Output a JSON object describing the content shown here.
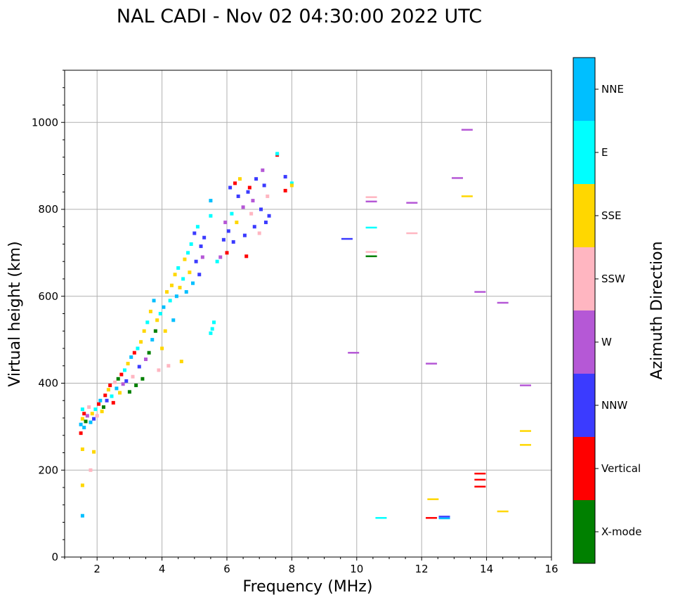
{
  "chart_data": {
    "type": "scatter",
    "title": "NAL CADI - Nov 02 04:30:00 2022 UTC",
    "xlabel": "Frequency (MHz)",
    "ylabel": "Virtual height (km)",
    "xlim": [
      1,
      16
    ],
    "ylim": [
      0,
      1120
    ],
    "xticks": [
      2,
      4,
      6,
      8,
      10,
      12,
      14,
      16
    ],
    "yticks": [
      0,
      200,
      400,
      600,
      800,
      1000
    ],
    "grid": true,
    "colorbar": {
      "title": "Azimuth Direction",
      "categories": [
        {
          "name": "X-mode",
          "color": "#008000"
        },
        {
          "name": "Vertical",
          "color": "#ff0000"
        },
        {
          "name": "NNW",
          "color": "#3b3bff"
        },
        {
          "name": "W",
          "color": "#b558d6"
        },
        {
          "name": "SSW",
          "color": "#ffb6c1"
        },
        {
          "name": "SSE",
          "color": "#ffd700"
        },
        {
          "name": "E",
          "color": "#00ffff"
        },
        {
          "name": "NNE",
          "color": "#00bfff"
        }
      ]
    },
    "points": [
      {
        "f": 1.5,
        "h": 305,
        "c": "NNE"
      },
      {
        "f": 1.55,
        "h": 318,
        "c": "SSE"
      },
      {
        "f": 1.6,
        "h": 330,
        "c": "Vertical"
      },
      {
        "f": 1.55,
        "h": 340,
        "c": "E"
      },
      {
        "f": 1.65,
        "h": 312,
        "c": "X-mode"
      },
      {
        "f": 1.6,
        "h": 298,
        "c": "NNE"
      },
      {
        "f": 1.5,
        "h": 285,
        "c": "Vertical"
      },
      {
        "f": 1.7,
        "h": 325,
        "c": "W"
      },
      {
        "f": 1.75,
        "h": 345,
        "c": "SSW"
      },
      {
        "f": 1.8,
        "h": 310,
        "c": "NNE"
      },
      {
        "f": 1.85,
        "h": 330,
        "c": "SSE"
      },
      {
        "f": 1.9,
        "h": 318,
        "c": "NNW"
      },
      {
        "f": 1.95,
        "h": 340,
        "c": "E"
      },
      {
        "f": 2.0,
        "h": 325,
        "c": "SSW"
      },
      {
        "f": 2.05,
        "h": 352,
        "c": "Vertical"
      },
      {
        "f": 2.1,
        "h": 360,
        "c": "NNE"
      },
      {
        "f": 2.15,
        "h": 335,
        "c": "SSE"
      },
      {
        "f": 2.2,
        "h": 345,
        "c": "X-mode"
      },
      {
        "f": 2.25,
        "h": 372,
        "c": "Vertical"
      },
      {
        "f": 2.3,
        "h": 360,
        "c": "NNW"
      },
      {
        "f": 2.35,
        "h": 385,
        "c": "SSE"
      },
      {
        "f": 2.4,
        "h": 395,
        "c": "Vertical"
      },
      {
        "f": 2.45,
        "h": 370,
        "c": "E"
      },
      {
        "f": 2.5,
        "h": 355,
        "c": "Vertical"
      },
      {
        "f": 2.55,
        "h": 402,
        "c": "SSW"
      },
      {
        "f": 2.6,
        "h": 388,
        "c": "NNE"
      },
      {
        "f": 2.65,
        "h": 410,
        "c": "X-mode"
      },
      {
        "f": 2.7,
        "h": 378,
        "c": "SSE"
      },
      {
        "f": 2.75,
        "h": 420,
        "c": "Vertical"
      },
      {
        "f": 2.8,
        "h": 398,
        "c": "W"
      },
      {
        "f": 2.85,
        "h": 430,
        "c": "E"
      },
      {
        "f": 2.9,
        "h": 405,
        "c": "NNW"
      },
      {
        "f": 2.95,
        "h": 445,
        "c": "SSE"
      },
      {
        "f": 3.0,
        "h": 380,
        "c": "X-mode"
      },
      {
        "f": 3.05,
        "h": 460,
        "c": "NNE"
      },
      {
        "f": 3.1,
        "h": 415,
        "c": "SSW"
      },
      {
        "f": 3.15,
        "h": 470,
        "c": "Vertical"
      },
      {
        "f": 3.2,
        "h": 395,
        "c": "X-mode"
      },
      {
        "f": 3.25,
        "h": 480,
        "c": "E"
      },
      {
        "f": 3.3,
        "h": 438,
        "c": "NNW"
      },
      {
        "f": 3.35,
        "h": 495,
        "c": "SSE"
      },
      {
        "f": 3.4,
        "h": 410,
        "c": "X-mode"
      },
      {
        "f": 3.45,
        "h": 520,
        "c": "SSE"
      },
      {
        "f": 3.5,
        "h": 455,
        "c": "W"
      },
      {
        "f": 3.55,
        "h": 540,
        "c": "E"
      },
      {
        "f": 3.6,
        "h": 470,
        "c": "X-mode"
      },
      {
        "f": 3.65,
        "h": 565,
        "c": "SSE"
      },
      {
        "f": 3.7,
        "h": 500,
        "c": "NNE"
      },
      {
        "f": 3.75,
        "h": 590,
        "c": "NNE"
      },
      {
        "f": 3.8,
        "h": 520,
        "c": "X-mode"
      },
      {
        "f": 3.85,
        "h": 545,
        "c": "SSE"
      },
      {
        "f": 3.9,
        "h": 430,
        "c": "SSW"
      },
      {
        "f": 3.95,
        "h": 560,
        "c": "E"
      },
      {
        "f": 4.0,
        "h": 480,
        "c": "SSE"
      },
      {
        "f": 4.05,
        "h": 575,
        "c": "NNE"
      },
      {
        "f": 4.1,
        "h": 520,
        "c": "SSE"
      },
      {
        "f": 4.15,
        "h": 610,
        "c": "SSE"
      },
      {
        "f": 4.2,
        "h": 440,
        "c": "SSW"
      },
      {
        "f": 4.25,
        "h": 590,
        "c": "E"
      },
      {
        "f": 4.3,
        "h": 625,
        "c": "SSE"
      },
      {
        "f": 4.35,
        "h": 545,
        "c": "NNE"
      },
      {
        "f": 4.4,
        "h": 650,
        "c": "SSE"
      },
      {
        "f": 4.45,
        "h": 600,
        "c": "NNE"
      },
      {
        "f": 4.5,
        "h": 665,
        "c": "E"
      },
      {
        "f": 4.55,
        "h": 620,
        "c": "SSE"
      },
      {
        "f": 4.6,
        "h": 450,
        "c": "SSE"
      },
      {
        "f": 4.65,
        "h": 640,
        "c": "E"
      },
      {
        "f": 4.7,
        "h": 685,
        "c": "SSE"
      },
      {
        "f": 4.75,
        "h": 610,
        "c": "NNE"
      },
      {
        "f": 4.8,
        "h": 700,
        "c": "E"
      },
      {
        "f": 4.85,
        "h": 655,
        "c": "SSE"
      },
      {
        "f": 4.9,
        "h": 720,
        "c": "E"
      },
      {
        "f": 4.95,
        "h": 630,
        "c": "NNE"
      },
      {
        "f": 5.0,
        "h": 745,
        "c": "NNW"
      },
      {
        "f": 5.05,
        "h": 680,
        "c": "NNW"
      },
      {
        "f": 5.1,
        "h": 760,
        "c": "E"
      },
      {
        "f": 5.15,
        "h": 650,
        "c": "NNW"
      },
      {
        "f": 5.2,
        "h": 715,
        "c": "NNW"
      },
      {
        "f": 5.25,
        "h": 690,
        "c": "W"
      },
      {
        "f": 5.3,
        "h": 735,
        "c": "NNW"
      },
      {
        "f": 5.5,
        "h": 515,
        "c": "E"
      },
      {
        "f": 5.55,
        "h": 525,
        "c": "E"
      },
      {
        "f": 5.6,
        "h": 540,
        "c": "E"
      },
      {
        "f": 5.5,
        "h": 785,
        "c": "E"
      },
      {
        "f": 5.5,
        "h": 820,
        "c": "NNE"
      },
      {
        "f": 5.7,
        "h": 680,
        "c": "E"
      },
      {
        "f": 5.8,
        "h": 690,
        "c": "W"
      },
      {
        "f": 5.9,
        "h": 730,
        "c": "NNW"
      },
      {
        "f": 5.95,
        "h": 770,
        "c": "W"
      },
      {
        "f": 6.0,
        "h": 700,
        "c": "Vertical"
      },
      {
        "f": 6.05,
        "h": 750,
        "c": "NNW"
      },
      {
        "f": 6.1,
        "h": 850,
        "c": "NNW"
      },
      {
        "f": 6.15,
        "h": 790,
        "c": "E"
      },
      {
        "f": 6.2,
        "h": 725,
        "c": "NNW"
      },
      {
        "f": 6.25,
        "h": 860,
        "c": "Vertical"
      },
      {
        "f": 6.3,
        "h": 770,
        "c": "SSE"
      },
      {
        "f": 6.35,
        "h": 830,
        "c": "NNW"
      },
      {
        "f": 6.4,
        "h": 870,
        "c": "SSE"
      },
      {
        "f": 6.5,
        "h": 805,
        "c": "W"
      },
      {
        "f": 6.55,
        "h": 740,
        "c": "NNW"
      },
      {
        "f": 6.6,
        "h": 692,
        "c": "Vertical"
      },
      {
        "f": 6.65,
        "h": 840,
        "c": "NNW"
      },
      {
        "f": 6.7,
        "h": 850,
        "c": "Vertical"
      },
      {
        "f": 6.75,
        "h": 790,
        "c": "SSW"
      },
      {
        "f": 6.8,
        "h": 820,
        "c": "W"
      },
      {
        "f": 6.85,
        "h": 760,
        "c": "NNW"
      },
      {
        "f": 6.9,
        "h": 870,
        "c": "NNW"
      },
      {
        "f": 7.0,
        "h": 745,
        "c": "SSW"
      },
      {
        "f": 7.05,
        "h": 800,
        "c": "NNW"
      },
      {
        "f": 7.1,
        "h": 890,
        "c": "W"
      },
      {
        "f": 7.15,
        "h": 855,
        "c": "NNW"
      },
      {
        "f": 7.2,
        "h": 770,
        "c": "NNW"
      },
      {
        "f": 7.25,
        "h": 830,
        "c": "SSW"
      },
      {
        "f": 7.3,
        "h": 785,
        "c": "NNW"
      },
      {
        "f": 7.55,
        "h": 925,
        "c": "Vertical"
      },
      {
        "f": 7.55,
        "h": 928,
        "c": "E"
      },
      {
        "f": 7.8,
        "h": 875,
        "c": "NNW"
      },
      {
        "f": 7.8,
        "h": 843,
        "c": "Vertical"
      },
      {
        "f": 8.0,
        "h": 860,
        "c": "E"
      },
      {
        "f": 8.0,
        "h": 855,
        "c": "SSE"
      },
      {
        "f": 9.7,
        "h": 732,
        "c": "NNW"
      },
      {
        "f": 9.9,
        "h": 470,
        "c": "W"
      },
      {
        "f": 10.45,
        "h": 828,
        "c": "SSW"
      },
      {
        "f": 10.45,
        "h": 818,
        "c": "W"
      },
      {
        "f": 10.45,
        "h": 758,
        "c": "E"
      },
      {
        "f": 10.45,
        "h": 702,
        "c": "SSW"
      },
      {
        "f": 10.45,
        "h": 692,
        "c": "X-mode"
      },
      {
        "f": 10.75,
        "h": 90,
        "c": "E"
      },
      {
        "f": 11.7,
        "h": 815,
        "c": "W"
      },
      {
        "f": 11.7,
        "h": 745,
        "c": "SSW"
      },
      {
        "f": 12.3,
        "h": 445,
        "c": "W"
      },
      {
        "f": 12.35,
        "h": 133,
        "c": "SSE"
      },
      {
        "f": 12.3,
        "h": 90,
        "c": "Vertical"
      },
      {
        "f": 12.7,
        "h": 93,
        "c": "NNW"
      },
      {
        "f": 12.7,
        "h": 89,
        "c": "NNE"
      },
      {
        "f": 13.1,
        "h": 872,
        "c": "W"
      },
      {
        "f": 13.4,
        "h": 983,
        "c": "W"
      },
      {
        "f": 13.4,
        "h": 830,
        "c": "SSE"
      },
      {
        "f": 13.8,
        "h": 610,
        "c": "W"
      },
      {
        "f": 13.8,
        "h": 192,
        "c": "Vertical"
      },
      {
        "f": 13.8,
        "h": 178,
        "c": "Vertical"
      },
      {
        "f": 13.8,
        "h": 162,
        "c": "Vertical"
      },
      {
        "f": 14.5,
        "h": 585,
        "c": "W"
      },
      {
        "f": 14.5,
        "h": 105,
        "c": "SSE"
      },
      {
        "f": 15.2,
        "h": 395,
        "c": "W"
      },
      {
        "f": 15.2,
        "h": 290,
        "c": "SSE"
      },
      {
        "f": 15.2,
        "h": 258,
        "c": "SSE"
      },
      {
        "f": 1.55,
        "h": 95,
        "c": "NNE"
      },
      {
        "f": 1.55,
        "h": 165,
        "c": "SSE"
      },
      {
        "f": 1.9,
        "h": 242,
        "c": "SSE"
      },
      {
        "f": 1.8,
        "h": 200,
        "c": "SSW"
      },
      {
        "f": 1.55,
        "h": 248,
        "c": "SSE"
      }
    ]
  }
}
